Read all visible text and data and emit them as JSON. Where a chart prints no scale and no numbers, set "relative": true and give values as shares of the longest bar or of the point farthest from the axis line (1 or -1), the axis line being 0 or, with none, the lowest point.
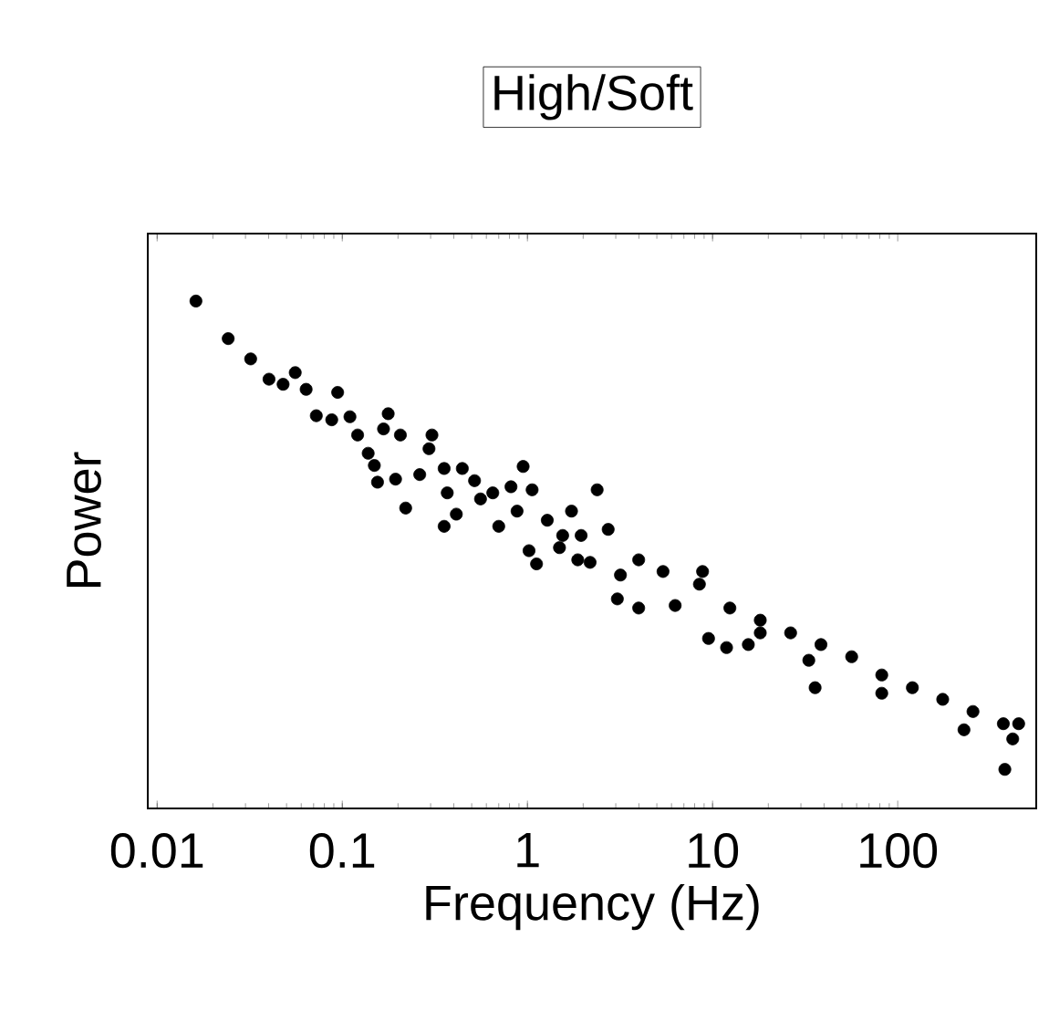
{
  "chart_data": {
    "type": "scatter",
    "title": "High/Soft",
    "xlabel": "Frequency (Hz)",
    "ylabel": "Power",
    "log": "x",
    "relative": true,
    "marker": "circle",
    "xlim": [
      0.0089,
      560
    ],
    "xticks": [
      0.01,
      0.1,
      1,
      10,
      100
    ],
    "series": [
      {
        "color": "#000000",
        "x": [
          0.0162,
          0.0242,
          0.032,
          0.0402,
          0.0479,
          0.0557,
          0.0638,
          0.0944,
          0.0724,
          0.0877,
          0.11,
          0.121,
          0.177,
          0.167,
          0.206,
          0.138,
          0.149,
          0.155,
          0.194,
          0.22,
          0.305,
          0.294,
          0.262,
          0.355,
          0.445,
          0.369,
          0.355,
          0.413,
          0.518,
          0.558,
          0.65,
          0.7,
          0.815,
          0.948,
          1.06,
          0.879,
          1.02,
          1.12,
          1.28,
          1.55,
          1.73,
          1.87,
          1.95,
          1.49,
          2.38,
          2.73,
          2.18,
          3.18,
          3.99,
          3.06,
          3.99,
          6.28,
          5.4,
          8.83,
          8.49,
          9.51,
          11.9,
          15.6,
          18.1,
          12.4,
          18.1,
          26.4,
          33.1,
          35.8,
          38.5,
          56.4,
          82.0,
          82.0,
          120,
          175,
          228,
          255,
          372,
          418,
          450,
          379
        ],
        "values": [
          1.0,
          0.926,
          0.886,
          0.846,
          0.836,
          0.859,
          0.826,
          0.82,
          0.774,
          0.766,
          0.772,
          0.736,
          0.778,
          0.748,
          0.736,
          0.7,
          0.676,
          0.643,
          0.649,
          0.592,
          0.736,
          0.709,
          0.658,
          0.67,
          0.67,
          0.622,
          0.556,
          0.58,
          0.646,
          0.61,
          0.622,
          0.556,
          0.634,
          0.674,
          0.628,
          0.586,
          0.508,
          0.482,
          0.568,
          0.538,
          0.586,
          0.49,
          0.538,
          0.514,
          0.628,
          0.55,
          0.485,
          0.46,
          0.49,
          0.413,
          0.395,
          0.4,
          0.467,
          0.467,
          0.442,
          0.335,
          0.317,
          0.323,
          0.346,
          0.395,
          0.371,
          0.346,
          0.292,
          0.238,
          0.323,
          0.299,
          0.227,
          0.263,
          0.238,
          0.215,
          0.155,
          0.191,
          0.167,
          0.137,
          0.167,
          0.077
        ]
      }
    ]
  }
}
